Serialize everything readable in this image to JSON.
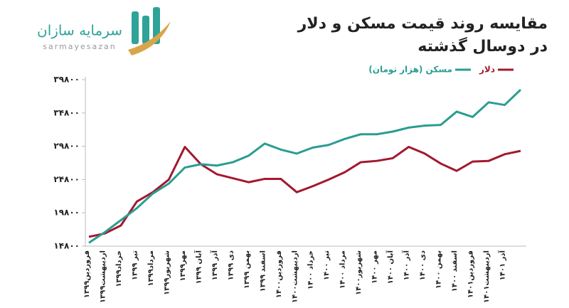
{
  "logo": {
    "name": "سرمایه سازان",
    "latin": "sarmayesazan"
  },
  "chart_data": {
    "type": "line",
    "title_lines": [
      "مقایسه روند قیمت مسکن و دلار",
      "در دوسال گذشته"
    ],
    "categories": [
      "فروردین۱۳۹۹",
      "اردیبهشت۱۳۹۹",
      "خرداد۱۳۹۹",
      "تیر ۱۳۹۹",
      "مرداد۱۳۹۹",
      "شهریور۱۳۹۹",
      "مهر۱۳۹۹",
      "آبان ۱۳۹۹",
      "آذر ۱۳۹۹",
      "دی ۱۳۹۹",
      "بهمن ۱۳۹۹",
      "اسفند ۱۳۹۹",
      "فروردین۱۴۰۰",
      "اردیبهشت۱۴۰۰",
      "خرداد ۱۴۰۰",
      "تیر ۱۴۰۰",
      "مرداد ۱۴۰۰",
      "شهریور۱۴۰۰",
      "مهر ۱۴۰۰",
      "آبان ۱۴۰۰",
      "آذر ۱۴۰۰",
      "دی ۱۴۰۰",
      "بهمن ۱۴۰۰",
      "اسفند ۱۴۰۰",
      "فروردین۱۴۰۱",
      "اردیبهشت۱۴۰۱",
      "آذر ۱۴۰۱",
      null
    ],
    "series": [
      {
        "name": "دلار",
        "color": "#a3182f",
        "values": [
          16200,
          16700,
          17900,
          21500,
          22900,
          24800,
          29700,
          27100,
          25600,
          25000,
          24400,
          24900,
          24900,
          22900,
          23800,
          24800,
          25900,
          27400,
          27600,
          28000,
          29700,
          28700,
          27200,
          26100,
          27500,
          27600,
          28600,
          29100
        ]
      },
      {
        "name": "مسکن (هزار تومان)",
        "color": "#2a9d92",
        "values": [
          15300,
          16900,
          18700,
          20500,
          22700,
          24200,
          26600,
          27100,
          26900,
          27400,
          28400,
          30200,
          29300,
          28700,
          29600,
          30000,
          30900,
          31600,
          31600,
          32000,
          32600,
          32900,
          33000,
          35000,
          34200,
          36400,
          36000,
          38300
        ]
      }
    ],
    "ylim": [
      14800,
      39800
    ],
    "yticks": [
      {
        "value": 14800,
        "label": "۱۴۸۰۰"
      },
      {
        "value": 19800,
        "label": "۱۹۸۰۰"
      },
      {
        "value": 24800,
        "label": "۲۴۸۰۰"
      },
      {
        "value": 29800,
        "label": "۲۹۸۰۰"
      },
      {
        "value": 34800,
        "label": "۳۴۸۰۰"
      },
      {
        "value": 39800,
        "label": "۳۹۸۰۰"
      }
    ],
    "grid": false,
    "legend": "top"
  }
}
